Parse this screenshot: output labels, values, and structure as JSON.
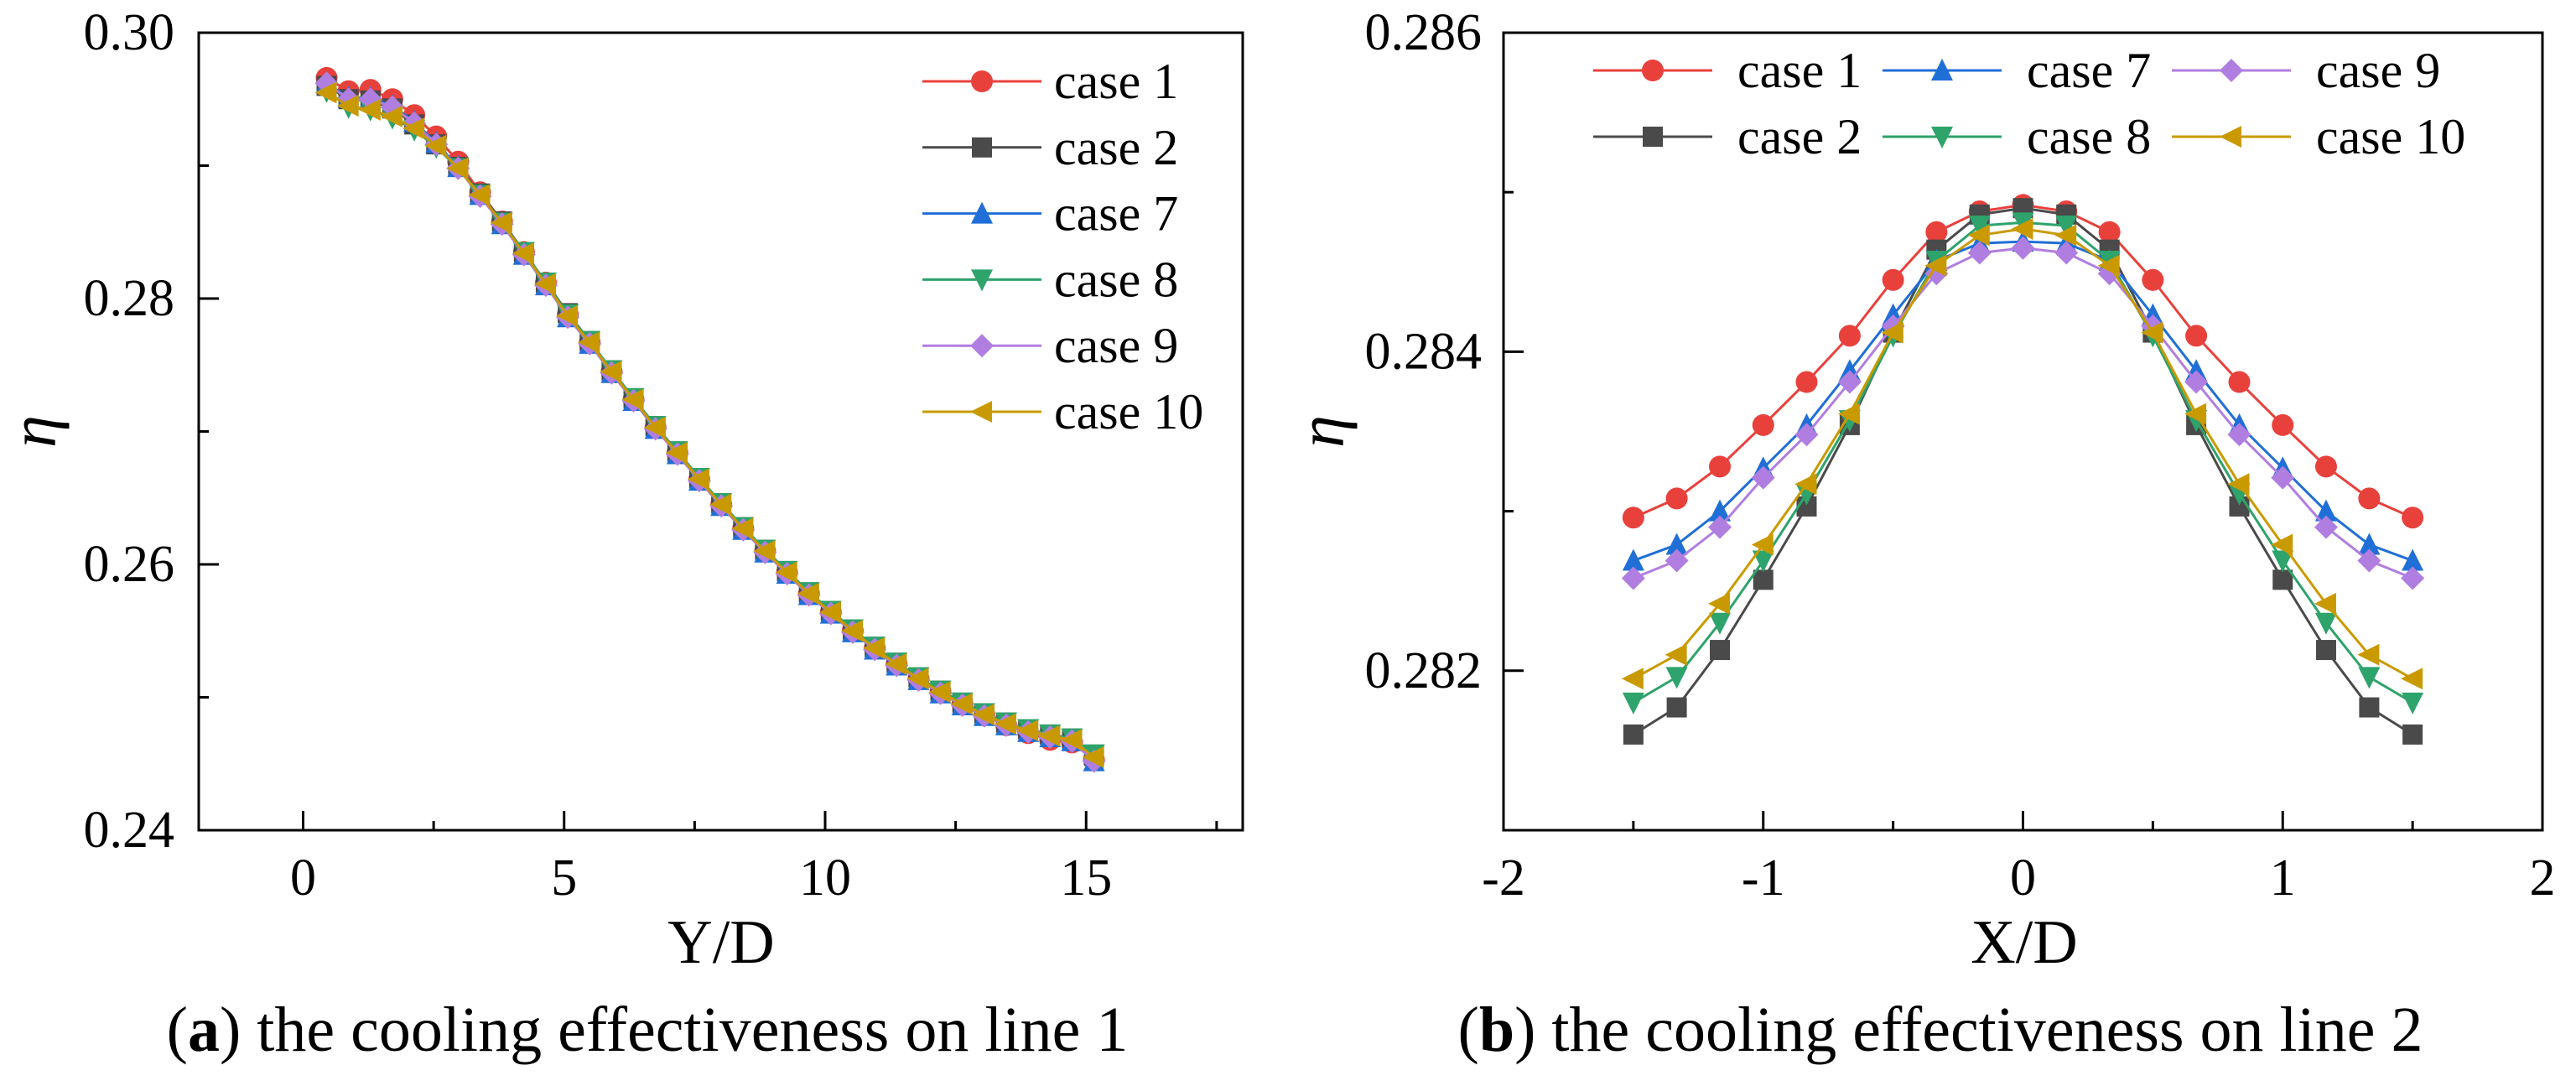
{
  "colors": {
    "case 1": "#e8413c",
    "case 2": "#4a4a4a",
    "case 7": "#1f6fd6",
    "case 8": "#2ea36b",
    "case 9": "#b07ee0",
    "case 10": "#c99a00"
  },
  "markers": {
    "case 1": "circle",
    "case 2": "square",
    "case 7": "triangle-up",
    "case 8": "triangle-down",
    "case 9": "diamond",
    "case 10": "triangle-left"
  },
  "chart_data": [
    {
      "type": "line",
      "caption_label": "a",
      "caption_text": " the cooling effectiveness on line 1",
      "xlabel": "Y/D",
      "ylabel": "η",
      "xlim": [
        -2,
        18
      ],
      "ylim": [
        0.24,
        0.3
      ],
      "xticks": [
        0,
        5,
        10,
        15
      ],
      "xtick_labels": [
        "0",
        "5",
        "10",
        "15"
      ],
      "yticks": [
        0.24,
        0.26,
        0.28,
        0.3
      ],
      "ytick_labels": [
        "0.24",
        "0.26",
        "0.28",
        "0.30"
      ],
      "grid": false,
      "legend": "top-right",
      "x": [
        0.45,
        0.87,
        1.29,
        1.71,
        2.13,
        2.55,
        2.97,
        3.39,
        3.81,
        4.23,
        4.65,
        5.07,
        5.49,
        5.91,
        6.33,
        6.75,
        7.17,
        7.59,
        8.01,
        8.43,
        8.85,
        9.27,
        9.69,
        10.11,
        10.53,
        10.95,
        11.37,
        11.79,
        12.21,
        12.63,
        13.05,
        13.47,
        13.89,
        14.31,
        14.73,
        15.15
      ],
      "series": [
        {
          "name": "case 1",
          "values": [
            0.2966,
            0.2956,
            0.2957,
            0.295,
            0.2938,
            0.2922,
            0.2903,
            0.288,
            0.2858,
            0.2835,
            0.2812,
            0.2788,
            0.2767,
            0.2745,
            0.2724,
            0.2703,
            0.2684,
            0.2664,
            0.2645,
            0.2627,
            0.261,
            0.2594,
            0.2578,
            0.2564,
            0.255,
            0.2537,
            0.2525,
            0.2514,
            0.2504,
            0.2495,
            0.2487,
            0.2479,
            0.2473,
            0.2468,
            0.2466,
            0.2453
          ]
        },
        {
          "name": "case 2",
          "values": [
            0.296,
            0.295,
            0.2949,
            0.2943,
            0.2931,
            0.2916,
            0.2899,
            0.2879,
            0.2858,
            0.2835,
            0.2812,
            0.2789,
            0.2768,
            0.2746,
            0.2725,
            0.2704,
            0.2685,
            0.2665,
            0.2646,
            0.2628,
            0.2611,
            0.2595,
            0.2579,
            0.2565,
            0.2551,
            0.2538,
            0.2526,
            0.2515,
            0.2505,
            0.2496,
            0.2488,
            0.2481,
            0.2476,
            0.2472,
            0.2469,
            0.2456
          ]
        },
        {
          "name": "case 7",
          "values": [
            0.2962,
            0.2951,
            0.2951,
            0.2945,
            0.2933,
            0.2917,
            0.2899,
            0.2878,
            0.2856,
            0.2833,
            0.281,
            0.2786,
            0.2766,
            0.2744,
            0.2723,
            0.2702,
            0.2683,
            0.2663,
            0.2644,
            0.2626,
            0.2609,
            0.2593,
            0.2577,
            0.2563,
            0.2549,
            0.2536,
            0.2524,
            0.2513,
            0.2503,
            0.2494,
            0.2486,
            0.2479,
            0.2474,
            0.247,
            0.2467,
            0.2452
          ]
        },
        {
          "name": "case 8",
          "values": [
            0.2956,
            0.2944,
            0.2942,
            0.2936,
            0.2927,
            0.2914,
            0.2898,
            0.2878,
            0.2857,
            0.2835,
            0.2812,
            0.2788,
            0.2768,
            0.2746,
            0.2725,
            0.2704,
            0.2685,
            0.2665,
            0.2646,
            0.2628,
            0.2611,
            0.2595,
            0.2579,
            0.2565,
            0.2551,
            0.2538,
            0.2526,
            0.2515,
            0.2505,
            0.2496,
            0.2488,
            0.2481,
            0.2476,
            0.2472,
            0.2469,
            0.2457
          ]
        },
        {
          "name": "case 9",
          "values": [
            0.2962,
            0.295,
            0.295,
            0.2944,
            0.2932,
            0.2916,
            0.2898,
            0.2877,
            0.2856,
            0.2833,
            0.281,
            0.2786,
            0.2766,
            0.2744,
            0.2723,
            0.2702,
            0.2683,
            0.2663,
            0.2644,
            0.2626,
            0.2609,
            0.2593,
            0.2577,
            0.2563,
            0.2549,
            0.2536,
            0.2524,
            0.2513,
            0.2503,
            0.2494,
            0.2486,
            0.2479,
            0.2474,
            0.247,
            0.2467,
            0.2452
          ]
        },
        {
          "name": "case 10",
          "values": [
            0.2955,
            0.2945,
            0.2942,
            0.2937,
            0.2928,
            0.2915,
            0.2898,
            0.2878,
            0.2857,
            0.2834,
            0.2811,
            0.2787,
            0.2767,
            0.2745,
            0.2724,
            0.2703,
            0.2684,
            0.2664,
            0.2645,
            0.2627,
            0.261,
            0.2594,
            0.2578,
            0.2564,
            0.255,
            0.2537,
            0.2525,
            0.2514,
            0.2504,
            0.2495,
            0.2487,
            0.248,
            0.2475,
            0.2471,
            0.2468,
            0.2455
          ]
        }
      ]
    },
    {
      "type": "line",
      "caption_label": "b",
      "caption_text": " the cooling effectiveness on line 2",
      "xlabel": "X/D",
      "ylabel": "η",
      "xlim": [
        -2,
        2
      ],
      "ylim": [
        0.281,
        0.286
      ],
      "xticks": [
        -2,
        -1,
        0,
        1,
        2
      ],
      "xtick_labels": [
        "-2",
        "-1",
        "0",
        "1",
        "2"
      ],
      "yticks": [
        0.282,
        0.284,
        0.286
      ],
      "ytick_labels": [
        "0.282",
        "0.284",
        "0.286"
      ],
      "grid": false,
      "legend": "top (3 columns)",
      "x": [
        -1.5,
        -1.333,
        -1.167,
        -1.0,
        -0.833,
        -0.667,
        -0.5,
        -0.333,
        -0.167,
        0,
        0.167,
        0.333,
        0.5,
        0.667,
        0.833,
        1.0,
        1.167,
        1.333,
        1.5
      ],
      "series": [
        {
          "name": "case 1",
          "values": [
            0.28296,
            0.28308,
            0.28328,
            0.28354,
            0.28381,
            0.2841,
            0.28445,
            0.28475,
            0.28488,
            0.28492,
            0.28488,
            0.28475,
            0.28445,
            0.2841,
            0.28381,
            0.28354,
            0.28328,
            0.28308,
            0.28296
          ]
        },
        {
          "name": "case 2",
          "values": [
            0.2816,
            0.28177,
            0.28213,
            0.28257,
            0.28303,
            0.28354,
            0.28412,
            0.28464,
            0.28486,
            0.2849,
            0.28486,
            0.28464,
            0.28412,
            0.28354,
            0.28303,
            0.28257,
            0.28213,
            0.28177,
            0.2816
          ]
        },
        {
          "name": "case 7",
          "values": [
            0.28269,
            0.28279,
            0.283,
            0.28327,
            0.28354,
            0.28388,
            0.28423,
            0.28457,
            0.28468,
            0.28469,
            0.28468,
            0.28457,
            0.28423,
            0.28388,
            0.28354,
            0.28327,
            0.283,
            0.28279,
            0.28269
          ]
        },
        {
          "name": "case 8",
          "values": [
            0.2818,
            0.28196,
            0.2823,
            0.28269,
            0.28311,
            0.28357,
            0.2841,
            0.28457,
            0.28479,
            0.28481,
            0.28479,
            0.28457,
            0.2841,
            0.28357,
            0.28311,
            0.28269,
            0.2823,
            0.28196,
            0.2818
          ]
        },
        {
          "name": "case 9",
          "values": [
            0.28258,
            0.28269,
            0.2829,
            0.28321,
            0.28348,
            0.28381,
            0.28416,
            0.28449,
            0.28462,
            0.28465,
            0.28462,
            0.28449,
            0.28416,
            0.28381,
            0.28348,
            0.28321,
            0.2829,
            0.28269,
            0.28258
          ]
        },
        {
          "name": "case 10",
          "values": [
            0.28195,
            0.2821,
            0.28242,
            0.28279,
            0.28317,
            0.28361,
            0.28412,
            0.28454,
            0.28473,
            0.28477,
            0.28473,
            0.28454,
            0.28412,
            0.28361,
            0.28317,
            0.28279,
            0.28242,
            0.2821,
            0.28195
          ]
        }
      ]
    }
  ]
}
